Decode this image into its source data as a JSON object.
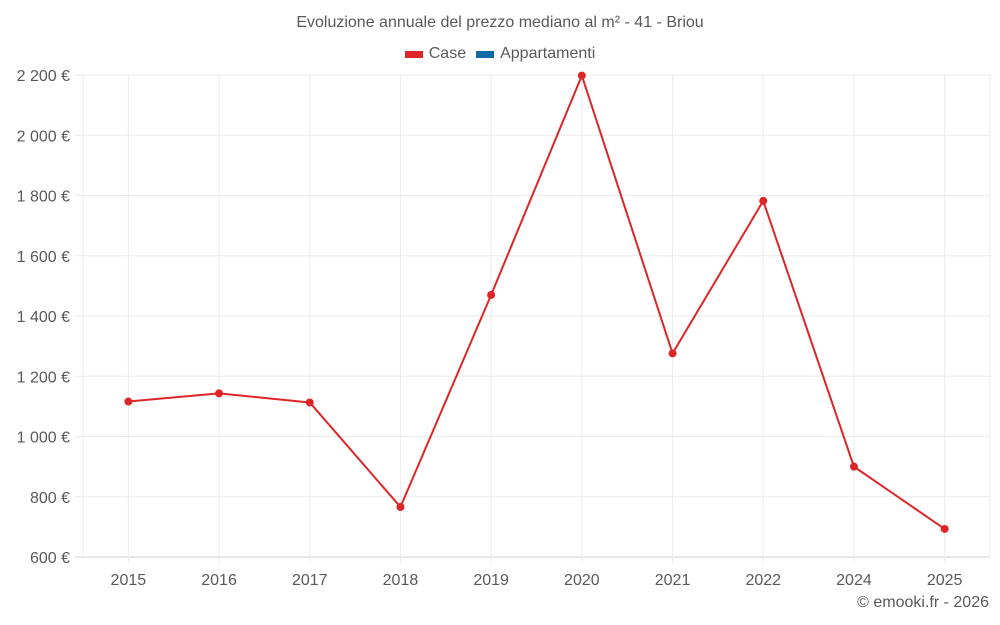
{
  "title": "Evoluzione annuale del prezzo mediano al m² - 41 - Briou",
  "legend": [
    {
      "label": "Case",
      "color": "#dd2628"
    },
    {
      "label": "Appartamenti",
      "color": "#0f6aa6"
    }
  ],
  "credit": "© emooki.fr - 2026",
  "chart_data": {
    "type": "line",
    "title": "Evoluzione annuale del prezzo mediano al m² - 41 - Briou",
    "xlabel": "",
    "ylabel": "",
    "categories": [
      "2015",
      "2016",
      "2017",
      "2018",
      "2019",
      "2020",
      "2021",
      "2022",
      "2024",
      "2025"
    ],
    "series": [
      {
        "name": "Case",
        "color": "#dd2628",
        "values": [
          1116,
          1143,
          1113,
          766,
          1470,
          2198,
          1276,
          1782,
          900,
          693
        ]
      },
      {
        "name": "Appartamenti",
        "color": "#0f6aa6",
        "values": []
      }
    ],
    "ylim": [
      600,
      2200
    ],
    "yticks": [
      600,
      800,
      1000,
      1200,
      1400,
      1600,
      1800,
      2000,
      2200
    ],
    "ytick_labels": [
      "600 €",
      "800 €",
      "1 000 €",
      "1 200 €",
      "1 400 €",
      "1 600 €",
      "1 800 €",
      "2 000 €",
      "2 200 €"
    ],
    "grid": true,
    "legend_position": "top"
  }
}
